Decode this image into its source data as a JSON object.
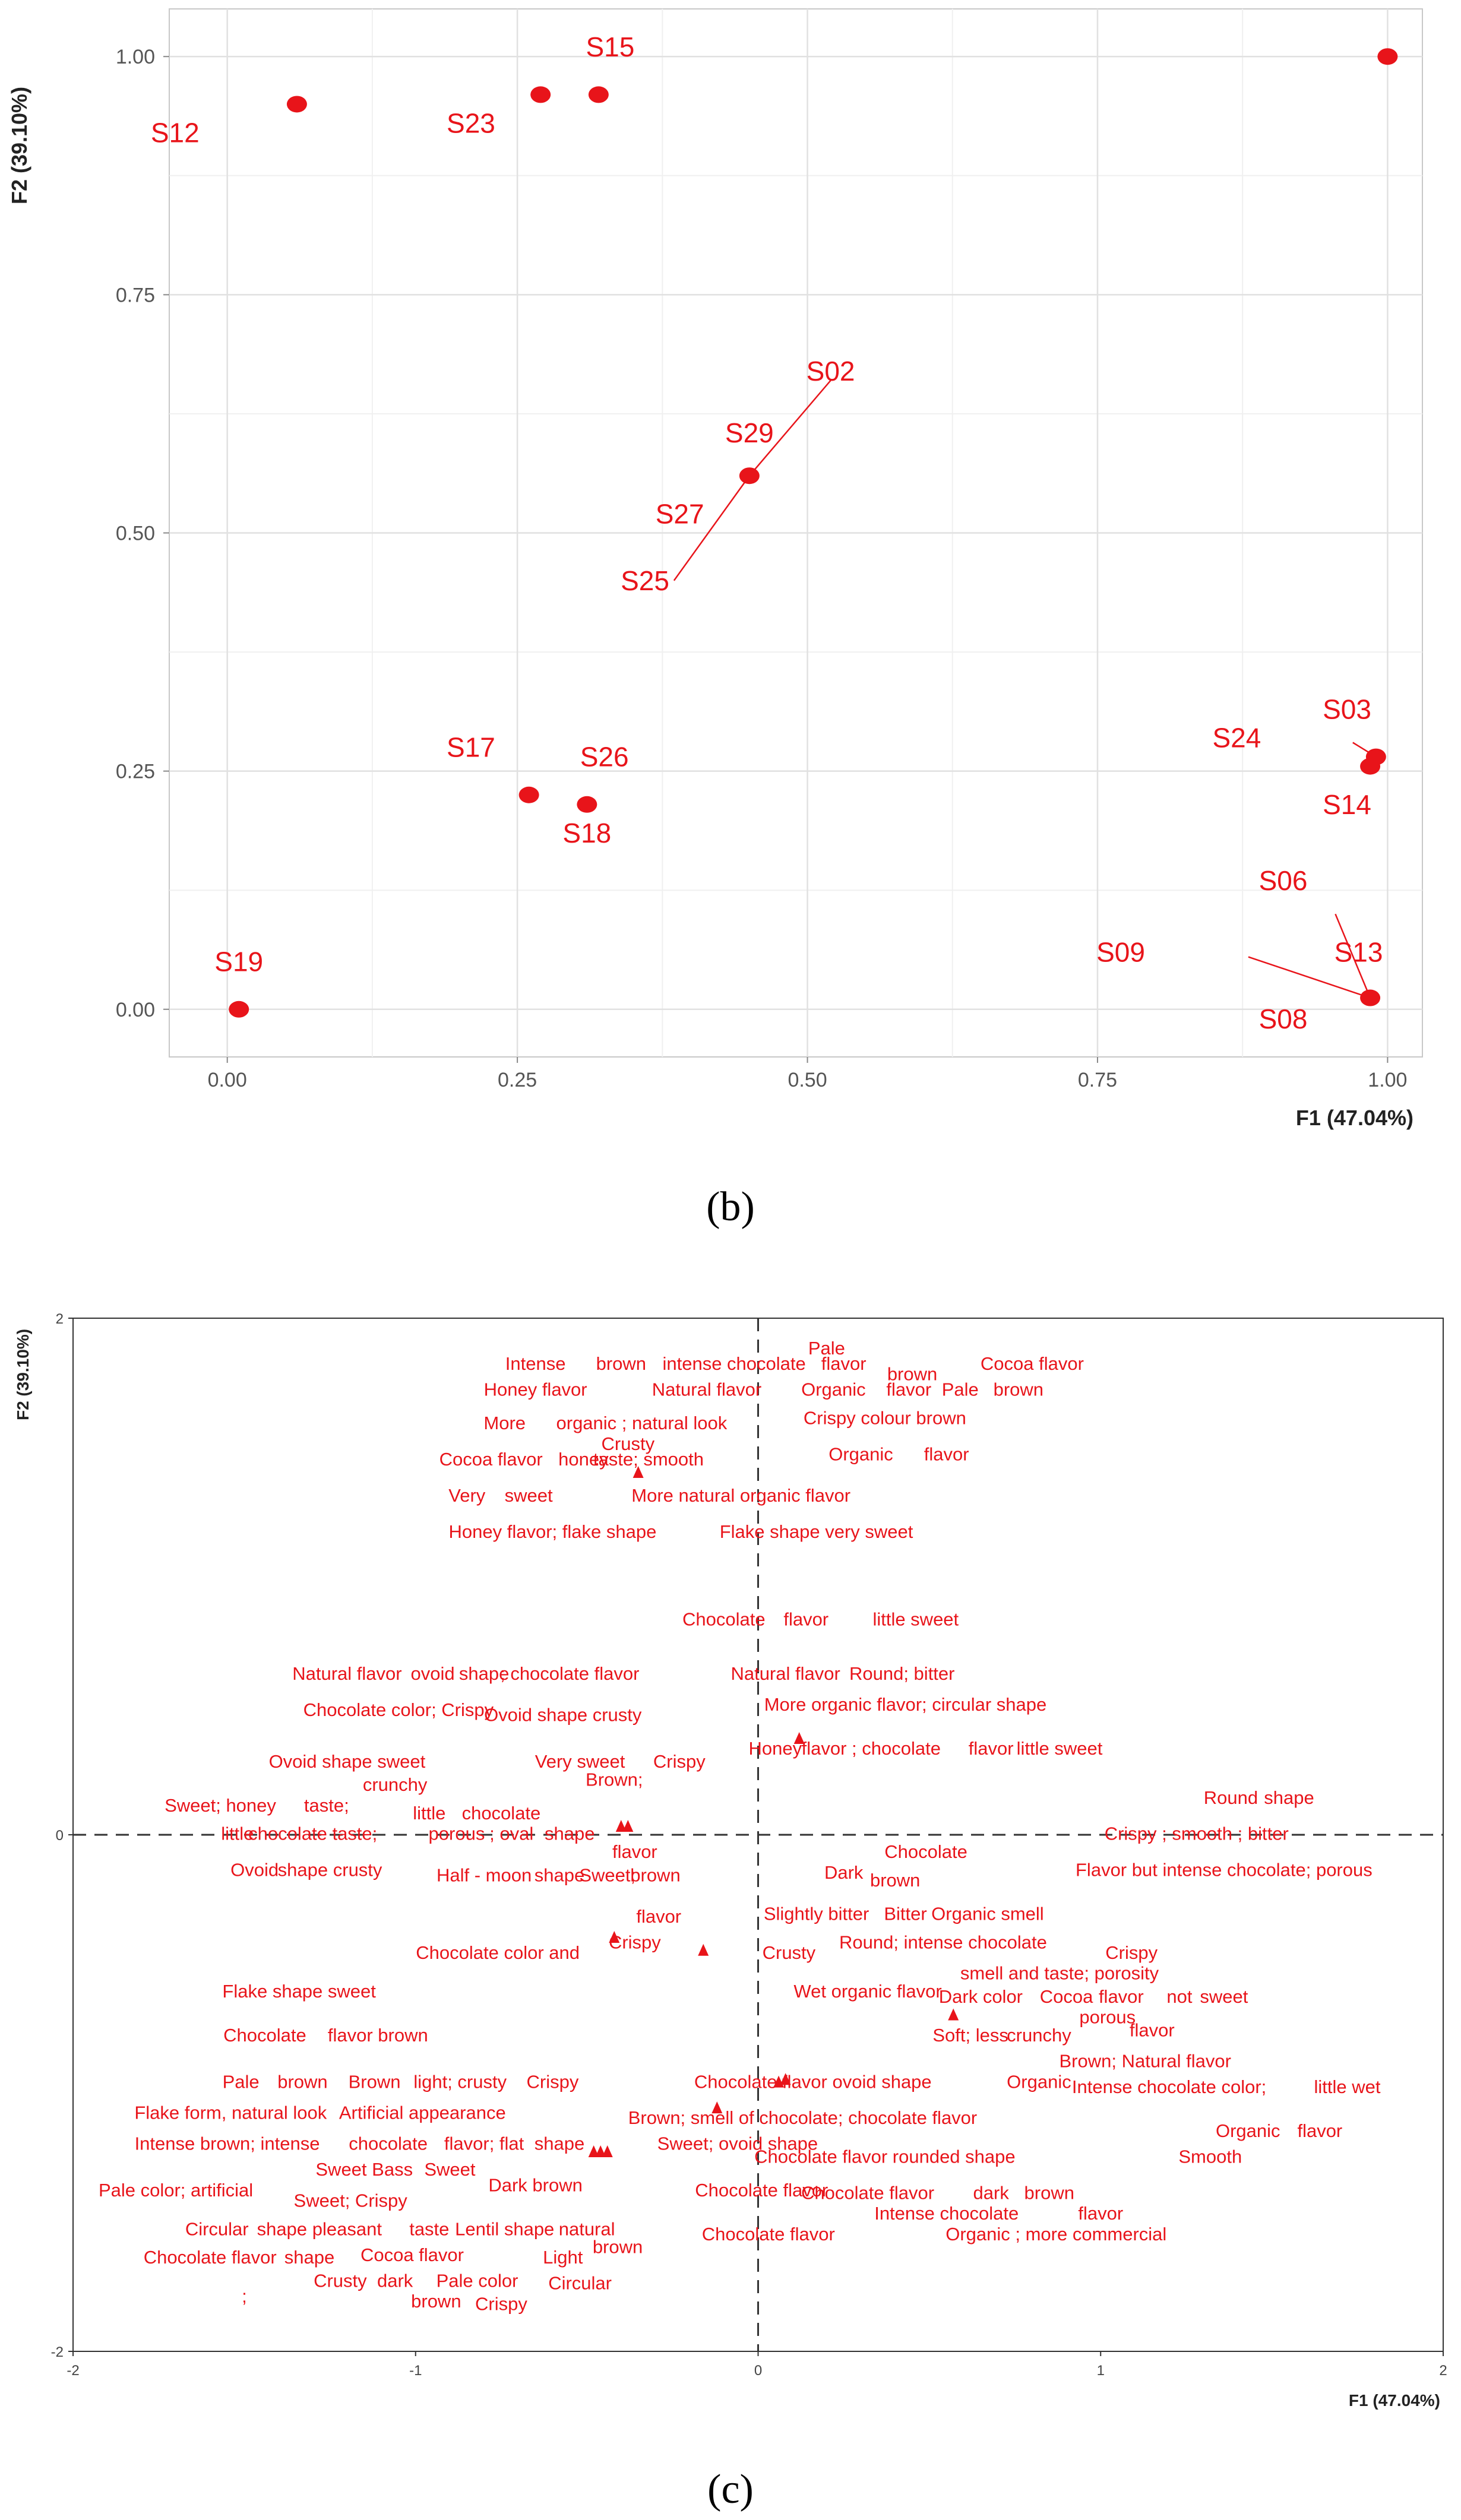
{
  "chart_data": [
    {
      "type": "scatter",
      "panel_label": "(b)",
      "xlabel": "F1 (47.04%)",
      "ylabel": "F2 (39.10%)",
      "xlim": [
        -0.05,
        1.03
      ],
      "ylim": [
        -0.05,
        1.05
      ],
      "x_ticks": [
        "0.00",
        "0.25",
        "0.50",
        "0.75",
        "1.00"
      ],
      "y_ticks": [
        "0.00",
        "0.25",
        "0.50",
        "0.75",
        "1.00"
      ],
      "grid": true,
      "points": [
        {
          "x": 0.01,
          "y": 0.0
        },
        {
          "x": 0.06,
          "y": 0.95
        },
        {
          "x": 0.27,
          "y": 0.96
        },
        {
          "x": 0.32,
          "y": 0.96
        },
        {
          "x": 1.0,
          "y": 1.0
        },
        {
          "x": 0.45,
          "y": 0.56
        },
        {
          "x": 0.26,
          "y": 0.225
        },
        {
          "x": 0.31,
          "y": 0.215
        },
        {
          "x": 0.99,
          "y": 0.265
        },
        {
          "x": 0.985,
          "y": 0.255
        },
        {
          "x": 0.985,
          "y": 0.012
        }
      ],
      "labels": [
        {
          "text": "S12",
          "x": -0.045,
          "y": 0.91
        },
        {
          "text": "S23",
          "x": 0.21,
          "y": 0.92
        },
        {
          "text": "S15",
          "x": 0.33,
          "y": 1.0
        },
        {
          "text": "S02",
          "x": 0.52,
          "y": 0.66
        },
        {
          "text": "S29",
          "x": 0.45,
          "y": 0.595
        },
        {
          "text": "S27",
          "x": 0.39,
          "y": 0.51
        },
        {
          "text": "S25",
          "x": 0.36,
          "y": 0.44
        },
        {
          "text": "S17",
          "x": 0.21,
          "y": 0.265
        },
        {
          "text": "S26",
          "x": 0.325,
          "y": 0.255
        },
        {
          "text": "S18",
          "x": 0.31,
          "y": 0.175
        },
        {
          "text": "S03",
          "x": 0.965,
          "y": 0.305
        },
        {
          "text": "S24",
          "x": 0.87,
          "y": 0.275
        },
        {
          "text": "S14",
          "x": 0.965,
          "y": 0.205
        },
        {
          "text": "S06",
          "x": 0.91,
          "y": 0.125
        },
        {
          "text": "S09",
          "x": 0.77,
          "y": 0.05
        },
        {
          "text": "S13",
          "x": 0.975,
          "y": 0.05
        },
        {
          "text": "S08",
          "x": 0.91,
          "y": -0.02
        },
        {
          "text": "S19",
          "x": 0.01,
          "y": 0.04
        }
      ],
      "leaders": [
        {
          "x1": 0.52,
          "y1": 0.66,
          "x2": 0.45,
          "y2": 0.56
        },
        {
          "x1": 0.45,
          "y1": 0.56,
          "x2": 0.385,
          "y2": 0.45
        },
        {
          "x1": 0.97,
          "y1": 0.28,
          "x2": 0.99,
          "y2": 0.265
        },
        {
          "x1": 0.88,
          "y1": 0.055,
          "x2": 0.985,
          "y2": 0.012
        },
        {
          "x1": 0.955,
          "y1": 0.1,
          "x2": 0.985,
          "y2": 0.012
        }
      ]
    },
    {
      "type": "scatter",
      "panel_label": "(c)",
      "xlabel": "F1 (47.04%)",
      "ylabel": "F2 (39.10%)",
      "xlim": [
        -2,
        2
      ],
      "ylim": [
        -2,
        2
      ],
      "x_ticks": [
        "-2",
        "-1",
        "0",
        "1",
        "2"
      ],
      "y_ticks": [
        "2",
        "0",
        "-2"
      ],
      "markers": [
        {
          "x": -0.35,
          "y": 1.4
        },
        {
          "x": -0.38,
          "y": 0.03
        },
        {
          "x": -0.4,
          "y": 0.03
        },
        {
          "x": 0.12,
          "y": 0.37
        },
        {
          "x": -0.42,
          "y": -0.4
        },
        {
          "x": -0.16,
          "y": -0.45
        },
        {
          "x": 0.57,
          "y": -0.7
        },
        {
          "x": 0.08,
          "y": -0.95
        },
        {
          "x": 0.06,
          "y": -0.96
        },
        {
          "x": -0.12,
          "y": -1.06
        },
        {
          "x": -0.48,
          "y": -1.23
        },
        {
          "x": -0.46,
          "y": -1.23
        },
        {
          "x": -0.44,
          "y": -1.23
        }
      ],
      "words": [
        {
          "text": "Pale",
          "x": 0.2,
          "y": 1.86
        },
        {
          "text": "Intense",
          "x": -0.65,
          "y": 1.8
        },
        {
          "text": "brown",
          "x": -0.4,
          "y": 1.8
        },
        {
          "text": "intense chocolate",
          "x": -0.07,
          "y": 1.8
        },
        {
          "text": "flavor",
          "x": 0.25,
          "y": 1.8
        },
        {
          "text": "Cocoa flavor",
          "x": 0.8,
          "y": 1.8
        },
        {
          "text": "brown",
          "x": 0.45,
          "y": 1.76
        },
        {
          "text": "Honey flavor",
          "x": -0.65,
          "y": 1.7
        },
        {
          "text": "Natural flavor",
          "x": -0.15,
          "y": 1.7
        },
        {
          "text": "Organic",
          "x": 0.22,
          "y": 1.7
        },
        {
          "text": "flavor",
          "x": 0.44,
          "y": 1.7
        },
        {
          "text": "Pale",
          "x": 0.59,
          "y": 1.7
        },
        {
          "text": "brown",
          "x": 0.76,
          "y": 1.7
        },
        {
          "text": "Crispy colour brown",
          "x": 0.37,
          "y": 1.59
        },
        {
          "text": "More",
          "x": -0.74,
          "y": 1.57
        },
        {
          "text": "organic ; natural look",
          "x": -0.34,
          "y": 1.57
        },
        {
          "text": "Crusty",
          "x": -0.38,
          "y": 1.49
        },
        {
          "text": "Cocoa flavor",
          "x": -0.78,
          "y": 1.43
        },
        {
          "text": "honey",
          "x": -0.51,
          "y": 1.43
        },
        {
          "text": "taste; smooth",
          "x": -0.32,
          "y": 1.43
        },
        {
          "text": "Organic",
          "x": 0.3,
          "y": 1.45
        },
        {
          "text": "flavor",
          "x": 0.55,
          "y": 1.45
        },
        {
          "text": "Very",
          "x": -0.85,
          "y": 1.29
        },
        {
          "text": "sweet",
          "x": -0.67,
          "y": 1.29
        },
        {
          "text": "More natural organic flavor",
          "x": -0.05,
          "y": 1.29
        },
        {
          "text": "Honey flavor; flake shape",
          "x": -0.6,
          "y": 1.15
        },
        {
          "text": "Flake shape very sweet",
          "x": 0.17,
          "y": 1.15
        },
        {
          "text": "Chocolate",
          "x": -0.1,
          "y": 0.81
        },
        {
          "text": "flavor",
          "x": 0.14,
          "y": 0.81
        },
        {
          "text": "little sweet",
          "x": 0.46,
          "y": 0.81
        },
        {
          "text": "Natural flavor",
          "x": -1.2,
          "y": 0.6
        },
        {
          "text": "ovoid",
          "x": -0.95,
          "y": 0.6
        },
        {
          "text": "shape",
          "x": -0.8,
          "y": 0.6
        },
        {
          "text": "; chocolate flavor",
          "x": -0.55,
          "y": 0.6
        },
        {
          "text": "Natural flavor",
          "x": 0.08,
          "y": 0.6
        },
        {
          "text": "Round; bitter",
          "x": 0.42,
          "y": 0.6
        },
        {
          "text": "More organic flavor; circular shape",
          "x": 0.43,
          "y": 0.48
        },
        {
          "text": "Chocolate color; Crispy",
          "x": -1.05,
          "y": 0.46
        },
        {
          "text": "Ovoid shape crusty",
          "x": -0.57,
          "y": 0.44
        },
        {
          "text": "Honey",
          "x": 0.05,
          "y": 0.31
        },
        {
          "text": "flavor ; chocolate",
          "x": 0.33,
          "y": 0.31
        },
        {
          "text": "flavor",
          "x": 0.68,
          "y": 0.31
        },
        {
          "text": "little sweet",
          "x": 0.88,
          "y": 0.31
        },
        {
          "text": "Ovoid shape sweet",
          "x": -1.2,
          "y": 0.26
        },
        {
          "text": "Very sweet",
          "x": -0.52,
          "y": 0.26
        },
        {
          "text": "Crispy",
          "x": -0.23,
          "y": 0.26
        },
        {
          "text": "crunchy",
          "x": -1.06,
          "y": 0.17
        },
        {
          "text": "Brown;",
          "x": -0.42,
          "y": 0.19
        },
        {
          "text": "Round",
          "x": 1.38,
          "y": 0.12
        },
        {
          "text": "shape",
          "x": 1.55,
          "y": 0.12
        },
        {
          "text": "Sweet; honey",
          "x": -1.57,
          "y": 0.09
        },
        {
          "text": "taste;",
          "x": -1.26,
          "y": 0.09
        },
        {
          "text": "little",
          "x": -0.96,
          "y": 0.06
        },
        {
          "text": "chocolate",
          "x": -0.75,
          "y": 0.06
        },
        {
          "text": "Crispy ; smooth ; bitter",
          "x": 1.28,
          "y": -0.02
        },
        {
          "text": "little",
          "x": -1.52,
          "y": -0.02
        },
        {
          "text": "chocolate taste;",
          "x": -1.3,
          "y": -0.02
        },
        {
          "text": "porous",
          "x": -0.88,
          "y": -0.02
        },
        {
          "text": "; oval",
          "x": -0.72,
          "y": -0.02
        },
        {
          "text": "shape",
          "x": -0.55,
          "y": -0.02
        },
        {
          "text": "flavor",
          "x": -0.36,
          "y": -0.09
        },
        {
          "text": "Chocolate",
          "x": 0.49,
          "y": -0.09
        },
        {
          "text": "Flavor but intense chocolate; porous",
          "x": 1.36,
          "y": -0.16
        },
        {
          "text": "Ovoid",
          "x": -1.47,
          "y": -0.16
        },
        {
          "text": "shape crusty",
          "x": -1.25,
          "y": -0.16
        },
        {
          "text": "Half - moon",
          "x": -0.8,
          "y": -0.18
        },
        {
          "text": "shape",
          "x": -0.58,
          "y": -0.18
        },
        {
          "text": "Sweet;",
          "x": -0.44,
          "y": -0.18
        },
        {
          "text": "brown",
          "x": -0.3,
          "y": -0.18
        },
        {
          "text": "Dark",
          "x": 0.25,
          "y": -0.17
        },
        {
          "text": "brown",
          "x": 0.4,
          "y": -0.2
        },
        {
          "text": "Slightly bitter",
          "x": 0.17,
          "y": -0.33
        },
        {
          "text": "Bitter",
          "x": 0.43,
          "y": -0.33
        },
        {
          "text": "Organic smell",
          "x": 0.67,
          "y": -0.33
        },
        {
          "text": "flavor",
          "x": -0.29,
          "y": -0.34
        },
        {
          "text": "Crispy",
          "x": -0.36,
          "y": -0.44
        },
        {
          "text": "Round; intense chocolate",
          "x": 0.54,
          "y": -0.44
        },
        {
          "text": "Chocolate color and",
          "x": -0.76,
          "y": -0.48
        },
        {
          "text": "Crusty",
          "x": 0.09,
          "y": -0.48
        },
        {
          "text": "Crispy",
          "x": 1.09,
          "y": -0.48
        },
        {
          "text": "smell and taste; porosity",
          "x": 0.88,
          "y": -0.56
        },
        {
          "text": "Flake shape sweet",
          "x": -1.34,
          "y": -0.63
        },
        {
          "text": "Wet organic flavor",
          "x": 0.32,
          "y": -0.63
        },
        {
          "text": "Dark color",
          "x": 0.65,
          "y": -0.65
        },
        {
          "text": "Cocoa",
          "x": 0.9,
          "y": -0.65
        },
        {
          "text": "flavor",
          "x": 1.06,
          "y": -0.65
        },
        {
          "text": "not",
          "x": 1.23,
          "y": -0.65
        },
        {
          "text": "sweet",
          "x": 1.36,
          "y": -0.65
        },
        {
          "text": "porous",
          "x": 1.02,
          "y": -0.73
        },
        {
          "text": "flavor",
          "x": 1.15,
          "y": -0.78
        },
        {
          "text": "Soft; less",
          "x": 0.62,
          "y": -0.8
        },
        {
          "text": "crunchy",
          "x": 0.82,
          "y": -0.8
        },
        {
          "text": "Chocolate",
          "x": -1.44,
          "y": -0.8
        },
        {
          "text": "flavor brown",
          "x": -1.11,
          "y": -0.8
        },
        {
          "text": "Brown; Natural flavor",
          "x": 1.13,
          "y": -0.9
        },
        {
          "text": "Pale",
          "x": -1.51,
          "y": -0.98
        },
        {
          "text": "brown",
          "x": -1.33,
          "y": -0.98
        },
        {
          "text": "Brown",
          "x": -1.12,
          "y": -0.98
        },
        {
          "text": "light; crusty",
          "x": -0.87,
          "y": -0.98
        },
        {
          "text": "Crispy",
          "x": -0.6,
          "y": -0.98
        },
        {
          "text": "Chocolate flavor ovoid shape",
          "x": 0.16,
          "y": -0.98
        },
        {
          "text": "Organic",
          "x": 0.82,
          "y": -0.98
        },
        {
          "text": "Intense chocolate color;",
          "x": 1.2,
          "y": -1.0
        },
        {
          "text": "little wet",
          "x": 1.72,
          "y": -1.0
        },
        {
          "text": "Flake form, natural look",
          "x": -1.54,
          "y": -1.1
        },
        {
          "text": "Artificial appearance",
          "x": -0.98,
          "y": -1.1
        },
        {
          "text": "Brown; smell of chocolate; chocolate flavor",
          "x": 0.13,
          "y": -1.12
        },
        {
          "text": "Organic",
          "x": 1.43,
          "y": -1.17
        },
        {
          "text": "flavor",
          "x": 1.64,
          "y": -1.17
        },
        {
          "text": "Intense brown; intense",
          "x": -1.55,
          "y": -1.22
        },
        {
          "text": "chocolate",
          "x": -1.08,
          "y": -1.22
        },
        {
          "text": "flavor; flat",
          "x": -0.8,
          "y": -1.22
        },
        {
          "text": "shape",
          "x": -0.58,
          "y": -1.22
        },
        {
          "text": "Sweet; ovoid shape",
          "x": -0.06,
          "y": -1.22
        },
        {
          "text": "Chocolate flavor rounded shape",
          "x": 0.37,
          "y": -1.27
        },
        {
          "text": "Smooth",
          "x": 1.32,
          "y": -1.27
        },
        {
          "text": "Sweet Bass",
          "x": -1.15,
          "y": -1.32
        },
        {
          "text": "Sweet",
          "x": -0.9,
          "y": -1.32
        },
        {
          "text": "Pale color; artificial",
          "x": -1.7,
          "y": -1.4
        },
        {
          "text": "Dark brown",
          "x": -0.65,
          "y": -1.38
        },
        {
          "text": "Chocolate flavor",
          "x": 0.01,
          "y": -1.4
        },
        {
          "text": "Chocolate flavor",
          "x": 0.32,
          "y": -1.41
        },
        {
          "text": "dark",
          "x": 0.68,
          "y": -1.41
        },
        {
          "text": "brown",
          "x": 0.85,
          "y": -1.41
        },
        {
          "text": "Sweet; Crispy",
          "x": -1.19,
          "y": -1.44
        },
        {
          "text": "Intense chocolate",
          "x": 0.55,
          "y": -1.49
        },
        {
          "text": "flavor",
          "x": 1.0,
          "y": -1.49
        },
        {
          "text": "Circular",
          "x": -1.58,
          "y": -1.55
        },
        {
          "text": "shape",
          "x": -1.39,
          "y": -1.55
        },
        {
          "text": "pleasant",
          "x": -1.2,
          "y": -1.55
        },
        {
          "text": "taste",
          "x": -0.96,
          "y": -1.55
        },
        {
          "text": "Lentil shape",
          "x": -0.74,
          "y": -1.55
        },
        {
          "text": "natural",
          "x": -0.5,
          "y": -1.55
        },
        {
          "text": "Organic ; more commercial",
          "x": 0.87,
          "y": -1.57
        },
        {
          "text": "Chocolate flavor",
          "x": 0.03,
          "y": -1.57
        },
        {
          "text": "Chocolate flavor",
          "x": -1.6,
          "y": -1.66
        },
        {
          "text": "shape",
          "x": -1.31,
          "y": -1.66
        },
        {
          "text": "Cocoa flavor",
          "x": -1.01,
          "y": -1.65
        },
        {
          "text": "Light",
          "x": -0.57,
          "y": -1.66
        },
        {
          "text": "brown",
          "x": -0.41,
          "y": -1.62
        },
        {
          "text": "Crusty",
          "x": -1.22,
          "y": -1.75
        },
        {
          "text": "dark",
          "x": -1.06,
          "y": -1.75
        },
        {
          "text": "Pale color",
          "x": -0.82,
          "y": -1.75
        },
        {
          "text": "Circular",
          "x": -0.52,
          "y": -1.76
        },
        {
          "text": ";",
          "x": -1.5,
          "y": -1.81
        },
        {
          "text": "brown",
          "x": -0.94,
          "y": -1.83
        },
        {
          "text": "Crispy",
          "x": -0.75,
          "y": -1.84
        }
      ]
    }
  ]
}
